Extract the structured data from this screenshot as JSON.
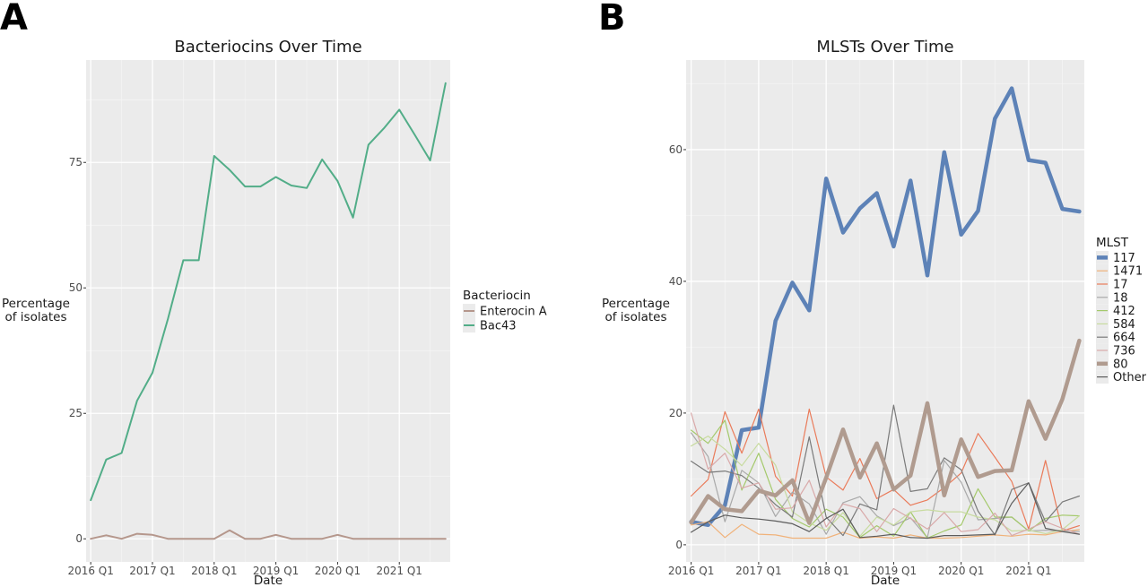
{
  "panel_labels": [
    "A",
    "B"
  ],
  "chart_data": [
    {
      "type": "line",
      "title": "Bacteriocins Over Time",
      "xlabel": "Date",
      "ylabel": "Percentage\nof isolates",
      "x_tick_labels": [
        "2016 Q1",
        "2017 Q1",
        "2018 Q1",
        "2019 Q1",
        "2020 Q1",
        "2021 Q1"
      ],
      "y_ticks": [
        0,
        25,
        50,
        75
      ],
      "xlim": [
        -0.3,
        23.3
      ],
      "ylim": [
        -4.6,
        95.4
      ],
      "grid": true,
      "legend_title": "Bacteriocin",
      "legend_position": "right",
      "x": [
        0,
        1,
        2,
        3,
        4,
        5,
        6,
        7,
        8,
        9,
        10,
        11,
        12,
        13,
        14,
        15,
        16,
        17,
        18,
        19,
        20,
        21,
        22,
        23
      ],
      "series": [
        {
          "name": "Enterocin A",
          "color": "#b5978c",
          "width": 2,
          "values": [
            0,
            0.7,
            0,
            1,
            0.8,
            0,
            0,
            0,
            0,
            1.7,
            0,
            0,
            0.8,
            0,
            0,
            0,
            0.8,
            0,
            0,
            0,
            0,
            0,
            0,
            0
          ]
        },
        {
          "name": "Bac43",
          "color": "#52ad88",
          "width": 2,
          "values": [
            7.7,
            15.8,
            17.1,
            27.5,
            33.1,
            43.8,
            55.5,
            55.5,
            76.3,
            73.5,
            70.2,
            70.2,
            72.1,
            70.4,
            69.9,
            75.6,
            71.3,
            64,
            78.5,
            81.8,
            85.5,
            80.5,
            75.4,
            90.8
          ]
        }
      ]
    },
    {
      "type": "line",
      "title": "MLSTs Over Time",
      "xlabel": "Date",
      "ylabel": "Percentage\nof isolates",
      "x_tick_labels": [
        "2016 Q1",
        "2017 Q1",
        "2018 Q1",
        "2019 Q1",
        "2020 Q1",
        "2021 Q1"
      ],
      "y_ticks": [
        0,
        20,
        40,
        60
      ],
      "xlim": [
        -0.3,
        23.3
      ],
      "ylim": [
        -2.6,
        73.6
      ],
      "grid": true,
      "legend_title": "MLST",
      "legend_position": "right",
      "x": [
        0,
        1,
        2,
        3,
        4,
        5,
        6,
        7,
        8,
        9,
        10,
        11,
        12,
        13,
        14,
        15,
        16,
        17,
        18,
        19,
        20,
        21,
        22,
        23
      ],
      "series": [
        {
          "name": "117",
          "color": "#5d82b7",
          "width": 4.5,
          "values": [
            3.5,
            3,
            6,
            17.4,
            17.8,
            34,
            39.8,
            35.6,
            55.6,
            47.4,
            51.1,
            53.4,
            45.3,
            55.3,
            40.9,
            59.6,
            47.1,
            50.7,
            64.7,
            69.3,
            58.4,
            58,
            51,
            50.6
          ]
        },
        {
          "name": "1471",
          "color": "#f0b27a",
          "width": 1.2,
          "values": [
            3,
            3.5,
            1.1,
            3.1,
            1.6,
            1.5,
            1,
            1,
            1,
            1.9,
            1,
            1.2,
            1,
            1.5,
            1,
            1,
            1.1,
            1.3,
            1.5,
            1.3,
            1.6,
            1.5,
            2,
            2.3
          ]
        },
        {
          "name": "17",
          "color": "#ea7b5a",
          "width": 1.2,
          "values": [
            7.4,
            9.9,
            20.2,
            13.9,
            20.6,
            10.4,
            7.4,
            20.6,
            10.3,
            8.3,
            13.1,
            7,
            8.4,
            6,
            6.8,
            8.7,
            10.9,
            16.9,
            13.3,
            9.6,
            2.4,
            12.8,
            2.1,
            2.9
          ]
        },
        {
          "name": "18",
          "color": "#a9a9a9",
          "width": 1.2,
          "values": [
            17,
            13.4,
            3.5,
            11.3,
            9.4,
            4.3,
            8,
            6.2,
            1.6,
            6.4,
            7.3,
            4.4,
            2.9,
            4.1,
            1.1,
            12.8,
            9.5,
            3.8,
            4,
            4.2,
            2.1,
            2.2,
            2.1,
            2
          ]
        },
        {
          "name": "412",
          "color": "#a4c96b",
          "width": 1.2,
          "values": [
            17.4,
            15.4,
            18.9,
            8.3,
            13.9,
            6.9,
            4,
            2.7,
            5.4,
            4.2,
            1.1,
            2.9,
            1.3,
            5,
            1,
            2.1,
            3,
            8.5,
            4.2,
            4.2,
            2.1,
            4,
            4.5,
            4.4
          ]
        },
        {
          "name": "584",
          "color": "#c8dba0",
          "width": 1.2,
          "values": [
            15,
            16.5,
            14.5,
            12,
            15.4,
            12.1,
            5,
            3.3,
            2.2,
            4.9,
            1.3,
            4.2,
            3,
            5,
            5.3,
            5,
            5,
            4.2,
            3.8,
            2.1,
            2.2,
            1.7,
            2.3,
            4.4
          ]
        },
        {
          "name": "664",
          "color": "#7a7a7a",
          "width": 1.2,
          "values": [
            12.7,
            11,
            11.2,
            10.5,
            8.6,
            6.1,
            4.2,
            16.4,
            4.2,
            1.4,
            6.2,
            5.3,
            21.2,
            8.1,
            8.5,
            13.2,
            11.4,
            5.1,
            1.5,
            8.4,
            9.4,
            3.5,
            6.5,
            7.4
          ]
        },
        {
          "name": "736",
          "color": "#d9a9a9",
          "width": 1.2,
          "values": [
            20,
            11.5,
            13.9,
            8.6,
            9.4,
            5.4,
            5.6,
            9.8,
            2.7,
            6.2,
            5.5,
            2,
            5.5,
            4,
            2.4,
            4.9,
            2,
            2.3,
            4.8,
            1.4,
            2.4,
            3.5,
            2.5,
            1.6
          ]
        },
        {
          "name": "80",
          "color": "#b09b8f",
          "width": 4.5,
          "values": [
            3.4,
            7.4,
            5.4,
            5.1,
            8.2,
            7.5,
            9.8,
            3.3,
            10.2,
            17.5,
            10.2,
            15.4,
            8.4,
            10.5,
            21.5,
            7.5,
            16,
            10.3,
            11.2,
            11.3,
            21.8,
            16.1,
            22.1,
            31
          ]
        },
        {
          "name": "Other",
          "color": "#5c5c5c",
          "width": 1.2,
          "values": [
            1.9,
            3.5,
            4.5,
            4.1,
            3.9,
            3.6,
            3.2,
            2,
            4,
            5.4,
            1.1,
            1.3,
            1.6,
            1.1,
            1,
            1.4,
            1.4,
            1.5,
            1.6,
            6.3,
            9.4,
            2.5,
            2,
            1.6
          ]
        }
      ]
    }
  ]
}
